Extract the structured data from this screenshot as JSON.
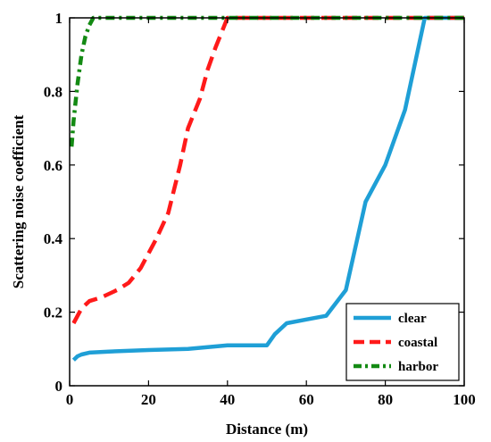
{
  "chart_data": {
    "type": "line",
    "title": "",
    "xlabel": "Distance (m)",
    "ylabel": "Scattering noise coefficient",
    "xlim": [
      0,
      100
    ],
    "ylim": [
      0,
      1
    ],
    "xticks": [
      0,
      20,
      40,
      60,
      80,
      100
    ],
    "yticks": [
      0,
      0.2,
      0.4,
      0.6,
      0.8,
      1
    ],
    "ytick_labels": [
      "0",
      "0.2",
      "0.4",
      "0.6",
      "0.8",
      "1"
    ],
    "grid": false,
    "legend_position": "bottom-right",
    "series": [
      {
        "name": "clear",
        "color": "#1f9fd6",
        "style": "solid",
        "x": [
          1,
          2,
          3,
          5,
          10,
          20,
          30,
          40,
          50,
          52,
          55,
          60,
          65,
          70,
          75,
          80,
          85,
          90,
          100
        ],
        "y": [
          0.07,
          0.08,
          0.085,
          0.09,
          0.093,
          0.097,
          0.1,
          0.11,
          0.11,
          0.14,
          0.17,
          0.18,
          0.19,
          0.26,
          0.5,
          0.6,
          0.75,
          1.0,
          1.0
        ]
      },
      {
        "name": "coastal",
        "color": "#ff1a1a",
        "style": "dashed",
        "x": [
          1,
          3,
          5,
          8,
          12,
          15,
          18,
          22,
          25,
          28,
          30,
          33,
          35,
          37,
          40,
          100
        ],
        "y": [
          0.17,
          0.21,
          0.23,
          0.24,
          0.26,
          0.28,
          0.32,
          0.4,
          0.47,
          0.6,
          0.7,
          0.78,
          0.86,
          0.92,
          1.0,
          1.0
        ]
      },
      {
        "name": "harbor",
        "color": "#138a13",
        "style": "dashdot",
        "x": [
          0.5,
          1,
          2,
          3,
          4,
          5,
          6,
          100
        ],
        "y": [
          0.65,
          0.72,
          0.82,
          0.9,
          0.95,
          0.98,
          1.0,
          1.0
        ]
      }
    ]
  }
}
